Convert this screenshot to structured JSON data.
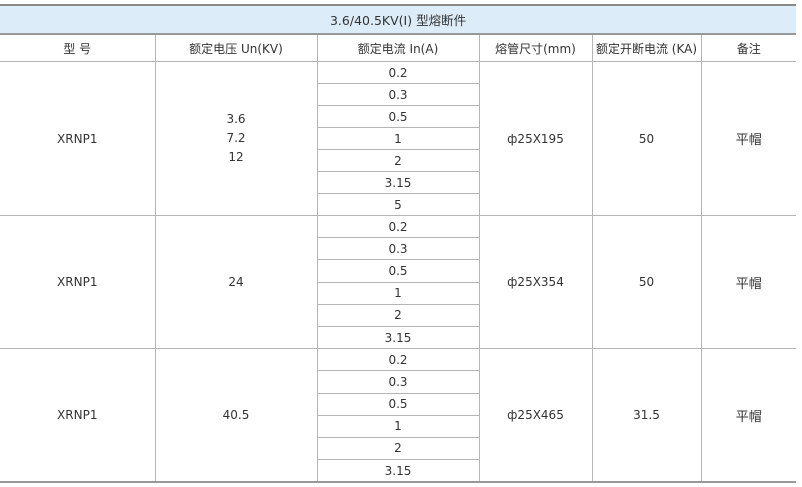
{
  "title": "3.6/40.5KV(I) 型熔断件",
  "headers": [
    "型 号",
    "额定电压 Un(KV)",
    "额定电流 In(A)",
    "熔管尺寸(mm)",
    "额定开断电流 (KA)",
    "备注"
  ],
  "groups": [
    {
      "model": "XRNP1",
      "voltages": [
        "3.6",
        "7.2",
        "12"
      ],
      "currents": [
        "0.2",
        "0.3",
        "0.5",
        "1",
        "2",
        "3.15",
        "5"
      ],
      "tube": "ф25X195",
      "breaking": "50",
      "note": "平帽"
    },
    {
      "model": "XRNP1",
      "voltages": [
        "24"
      ],
      "currents": [
        "0.2",
        "0.3",
        "0.5",
        "1",
        "2",
        "3.15"
      ],
      "tube": "ф25X354",
      "breaking": "50",
      "note": "平帽"
    },
    {
      "model": "XRNP1",
      "voltages": [
        "40.5"
      ],
      "currents": [
        "0.2",
        "0.3",
        "0.5",
        "1",
        "2",
        "3.15"
      ],
      "tube": "ф25X465",
      "breaking": "31.5",
      "note": "平帽"
    }
  ],
  "colors": {
    "title_bg": "#dcedf9",
    "border": "#b5b5b5"
  }
}
